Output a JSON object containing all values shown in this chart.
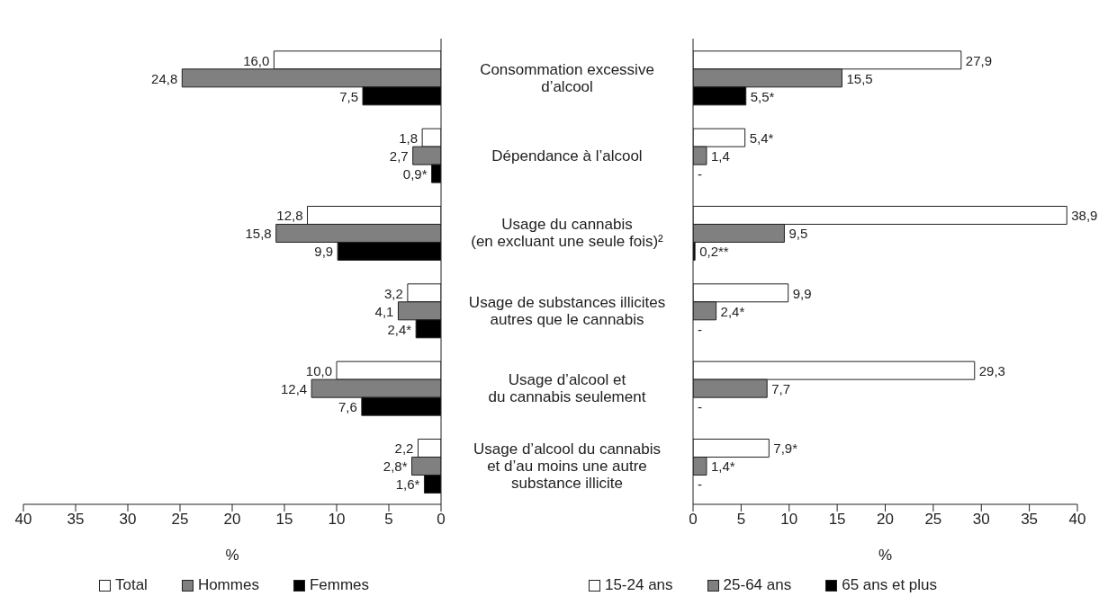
{
  "chart_data": [
    {
      "type": "bar",
      "orientation": "horizontal",
      "categories": [
        null,
        null,
        null,
        null,
        null,
        null
      ],
      "xlim": [
        40,
        0
      ],
      "xticks": [
        40,
        35,
        30,
        25,
        20,
        15,
        10,
        5,
        0
      ],
      "xlabel": "%",
      "tick_labels": "x",
      "grid": false,
      "legend": "bottom",
      "series": [
        {
          "name": "Total",
          "color": "#ffffff",
          "values": [
            16.0,
            1.8,
            12.8,
            3.2,
            10.0,
            2.2
          ],
          "value_labels": [
            "16,0",
            "1,8",
            "12,8",
            "3,2",
            "10,0",
            "2,2"
          ]
        },
        {
          "name": "Hommes",
          "color": "#808080",
          "values": [
            24.8,
            2.7,
            15.8,
            4.1,
            12.4,
            2.8
          ],
          "value_labels": [
            "24,8",
            "2,7",
            "15,8",
            "4,1",
            "12,4",
            "2,8*"
          ]
        },
        {
          "name": "Femmes",
          "color": "#000000",
          "values": [
            7.5,
            0.9,
            9.9,
            2.4,
            7.6,
            1.6
          ],
          "value_labels": [
            "7,5",
            "0,9*",
            "9,9",
            "2,4*",
            "7,6",
            "1,6*"
          ]
        }
      ]
    },
    {
      "type": "bar",
      "orientation": "horizontal",
      "categories": [
        "Consommation excessive\nd’alcool",
        "Dépendance à l’alcool",
        "Usage du cannabis\n(en excluant une seule fois)²",
        "Usage de substances illicites\nautres que le cannabis",
        "Usage d’alcool et\ndu cannabis seulement",
        "Usage d’alcool du cannabis\net d’au moins une autre\nsubstance illicite"
      ],
      "xlim": [
        0,
        40
      ],
      "xticks": [
        0,
        5,
        10,
        15,
        20,
        25,
        30,
        35,
        40
      ],
      "xlabel": "%",
      "grid": false,
      "legend": "bottom",
      "series": [
        {
          "name": "15-24 ans",
          "color": "#ffffff",
          "values": [
            27.9,
            5.4,
            38.9,
            9.9,
            29.3,
            7.9
          ],
          "value_labels": [
            "27,9",
            "5,4*",
            "38,9",
            "9,9",
            "29,3",
            "7,9*"
          ]
        },
        {
          "name": "25-64 ans",
          "color": "#808080",
          "values": [
            15.5,
            1.4,
            9.5,
            2.4,
            7.7,
            1.4
          ],
          "value_labels": [
            "15,5",
            "1,4",
            "9,5",
            "2,4*",
            "7,7",
            "1,4*"
          ]
        },
        {
          "name": "65 ans et plus",
          "color": "#000000",
          "values": [
            5.5,
            null,
            0.2,
            null,
            null,
            null
          ],
          "value_labels": [
            "5,5*",
            "-",
            "0,2**",
            "-",
            "-",
            "-"
          ]
        }
      ]
    }
  ]
}
